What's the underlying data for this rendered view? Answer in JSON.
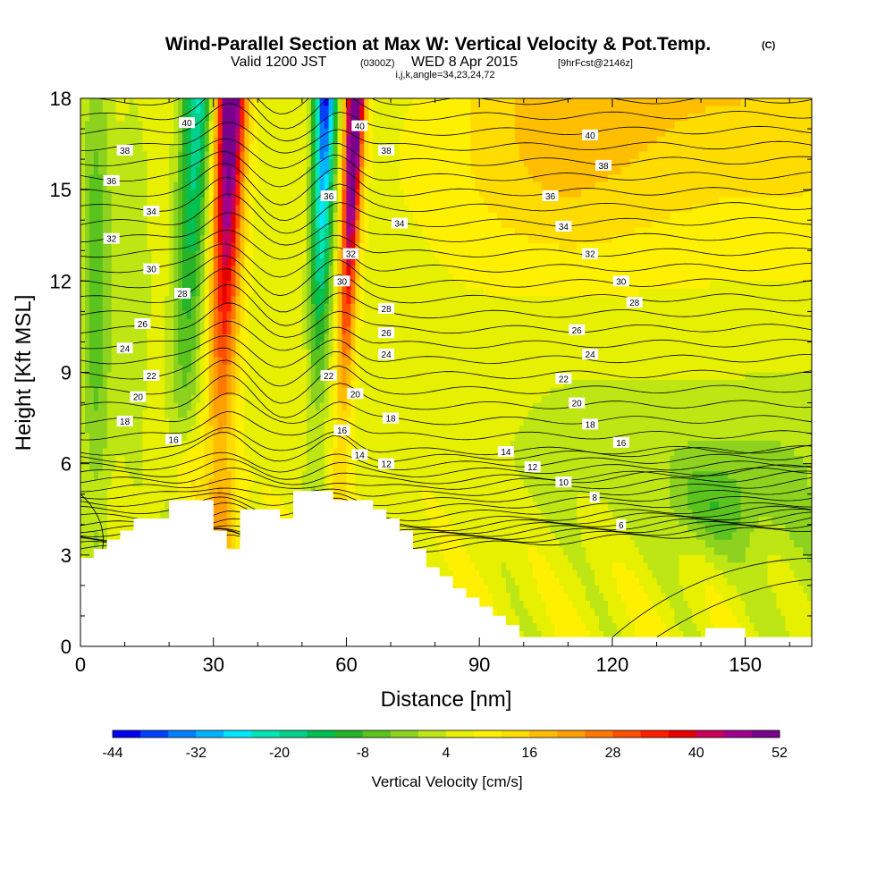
{
  "chart_data": {
    "type": "heatmap",
    "title": "Wind-Parallel Section at Max W: Vertical Velocity & Pot.Temp.",
    "title_mark": "(C)",
    "subtitle_main": "Valid 1200 JST",
    "subtitle_utc": "(0300Z)",
    "subtitle_date": "WED 8 Apr 2015",
    "subtitle_fcst": "[9hrFcst@2146z]",
    "params": "i,j,k,angle=34,23,24,72",
    "xlabel": "Distance [nm]",
    "ylabel": "Height [Kft MSL]",
    "xlim": [
      0,
      165
    ],
    "ylim": [
      0,
      18
    ],
    "xticks": [
      0,
      30,
      60,
      90,
      120,
      150
    ],
    "yticks": [
      0,
      3,
      6,
      9,
      12,
      15,
      18
    ],
    "colorbar": {
      "title": "Vertical Velocity [cm/s]",
      "tick_labels": [
        "-44",
        "-32",
        "-20",
        "-8",
        "4",
        "16",
        "28",
        "40",
        "52"
      ],
      "tick_values": [
        -44,
        -32,
        -20,
        -8,
        4,
        16,
        28,
        40,
        52
      ],
      "colors": [
        "#0000f0",
        "#0040ff",
        "#0080ff",
        "#00b4ff",
        "#00e6ff",
        "#00e6b4",
        "#00d28c",
        "#00c050",
        "#28b428",
        "#5ac31e",
        "#8cd21e",
        "#bee614",
        "#e6f000",
        "#fff000",
        "#ffdc00",
        "#ffbe00",
        "#ffa000",
        "#ff7800",
        "#ff5000",
        "#ff1e00",
        "#e60000",
        "#c8005a",
        "#a0008c",
        "#78008c"
      ]
    },
    "theta_levels": [
      6,
      8,
      10,
      12,
      14,
      16,
      18,
      20,
      22,
      24,
      26,
      28,
      30,
      32,
      34,
      36,
      38,
      40
    ],
    "contour_labels": [
      {
        "text": "40",
        "x": 24,
        "y": 17.2
      },
      {
        "text": "38",
        "x": 10,
        "y": 16.3
      },
      {
        "text": "36",
        "x": 7,
        "y": 15.3
      },
      {
        "text": "34",
        "x": 16,
        "y": 14.3
      },
      {
        "text": "32",
        "x": 7,
        "y": 13.4
      },
      {
        "text": "30",
        "x": 16,
        "y": 12.4
      },
      {
        "text": "28",
        "x": 23,
        "y": 11.6
      },
      {
        "text": "26",
        "x": 14,
        "y": 10.6
      },
      {
        "text": "24",
        "x": 10,
        "y": 9.8
      },
      {
        "text": "22",
        "x": 16,
        "y": 8.9
      },
      {
        "text": "20",
        "x": 13,
        "y": 8.2
      },
      {
        "text": "18",
        "x": 10,
        "y": 7.4
      },
      {
        "text": "16",
        "x": 21,
        "y": 6.8
      },
      {
        "text": "40",
        "x": 63,
        "y": 17.1
      },
      {
        "text": "38",
        "x": 69,
        "y": 16.3
      },
      {
        "text": "36",
        "x": 56,
        "y": 14.8
      },
      {
        "text": "34",
        "x": 72,
        "y": 13.9
      },
      {
        "text": "32",
        "x": 61,
        "y": 12.9
      },
      {
        "text": "30",
        "x": 59,
        "y": 12.0
      },
      {
        "text": "28",
        "x": 69,
        "y": 11.1
      },
      {
        "text": "26",
        "x": 69,
        "y": 10.3
      },
      {
        "text": "24",
        "x": 69,
        "y": 9.6
      },
      {
        "text": "22",
        "x": 56,
        "y": 8.9
      },
      {
        "text": "20",
        "x": 62,
        "y": 8.3
      },
      {
        "text": "18",
        "x": 70,
        "y": 7.5
      },
      {
        "text": "16",
        "x": 59,
        "y": 7.1
      },
      {
        "text": "14",
        "x": 63,
        "y": 6.3
      },
      {
        "text": "12",
        "x": 69,
        "y": 6.0
      },
      {
        "text": "40",
        "x": 115,
        "y": 16.8
      },
      {
        "text": "38",
        "x": 118,
        "y": 15.8
      },
      {
        "text": "36",
        "x": 106,
        "y": 14.8
      },
      {
        "text": "34",
        "x": 109,
        "y": 13.8
      },
      {
        "text": "32",
        "x": 115,
        "y": 12.9
      },
      {
        "text": "30",
        "x": 122,
        "y": 12.0
      },
      {
        "text": "28",
        "x": 125,
        "y": 11.3
      },
      {
        "text": "26",
        "x": 112,
        "y": 10.4
      },
      {
        "text": "24",
        "x": 115,
        "y": 9.6
      },
      {
        "text": "22",
        "x": 109,
        "y": 8.8
      },
      {
        "text": "20",
        "x": 112,
        "y": 8.0
      },
      {
        "text": "18",
        "x": 115,
        "y": 7.3
      },
      {
        "text": "16",
        "x": 122,
        "y": 6.7
      },
      {
        "text": "14",
        "x": 96,
        "y": 6.4
      },
      {
        "text": "12",
        "x": 102,
        "y": 5.9
      },
      {
        "text": "10",
        "x": 109,
        "y": 5.4
      },
      {
        "text": "8",
        "x": 116,
        "y": 4.9
      },
      {
        "text": "6",
        "x": 122,
        "y": 4.0
      }
    ],
    "terrain": [
      [
        0,
        2.9
      ],
      [
        3,
        2.9
      ],
      [
        3,
        3.2
      ],
      [
        6,
        3.2
      ],
      [
        6,
        3.5
      ],
      [
        9,
        3.5
      ],
      [
        9,
        3.8
      ],
      [
        12,
        3.8
      ],
      [
        12,
        4.2
      ],
      [
        20,
        4.2
      ],
      [
        20,
        4.8
      ],
      [
        30,
        4.8
      ],
      [
        30,
        3.8
      ],
      [
        33,
        3.8
      ],
      [
        33,
        3.2
      ],
      [
        36,
        3.2
      ],
      [
        36,
        4.5
      ],
      [
        39,
        4.5
      ],
      [
        39,
        4.5
      ],
      [
        45,
        4.5
      ],
      [
        45,
        4.2
      ],
      [
        48,
        4.2
      ],
      [
        48,
        5.1
      ],
      [
        57,
        5.1
      ],
      [
        57,
        4.8
      ],
      [
        66,
        4.8
      ],
      [
        66,
        4.5
      ],
      [
        69,
        4.5
      ],
      [
        69,
        4.2
      ],
      [
        72,
        4.2
      ],
      [
        72,
        3.8
      ],
      [
        75,
        3.8
      ],
      [
        75,
        3.2
      ],
      [
        78,
        3.2
      ],
      [
        78,
        2.6
      ],
      [
        81,
        2.6
      ],
      [
        81,
        2.3
      ],
      [
        84,
        2.3
      ],
      [
        84,
        1.9
      ],
      [
        87,
        1.9
      ],
      [
        87,
        1.6
      ],
      [
        90,
        1.6
      ],
      [
        90,
        1.3
      ],
      [
        93,
        1.3
      ],
      [
        93,
        1.0
      ],
      [
        96,
        1.0
      ],
      [
        96,
        0.7
      ],
      [
        99,
        0.7
      ],
      [
        99,
        0.3
      ],
      [
        141,
        0.3
      ],
      [
        141,
        0.6
      ],
      [
        150,
        0.6
      ],
      [
        150,
        0.3
      ],
      [
        165,
        0.3
      ]
    ]
  }
}
